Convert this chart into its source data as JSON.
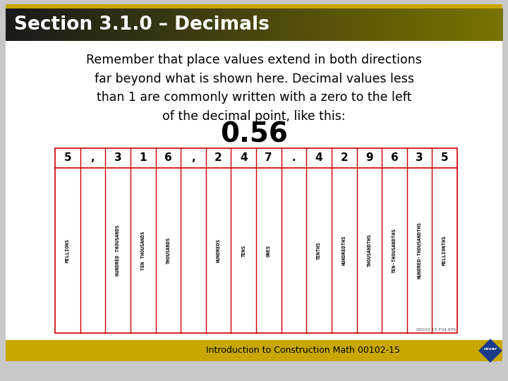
{
  "title": "Section 3.1.0 – Decimals",
  "title_bg_dark": "#1a1a1a",
  "title_bg_gold": "#c8a800",
  "title_text_color": "#ffffff",
  "bg_color": "#ffffff",
  "slide_bg": "#c8c8c8",
  "footer_bg": "#c8a800",
  "footer_text": "Introduction to Construction Math 00102-15",
  "body_text": "Remember that place values extend in both directions\nfar beyond what is shown here. Decimal values less\nthan 1 are commonly written with a zero to the left\nof the decimal point, like this:",
  "example_number": "0.56",
  "digits": [
    "5",
    ",",
    "3",
    "1",
    "6",
    ",",
    "2",
    "4",
    "7",
    ".",
    "4",
    "2",
    "9",
    "6",
    "3",
    "5"
  ],
  "labels": [
    "MILLIONS",
    "HUNDRED THOUSANDS",
    "TEN THOUSANDS",
    "THOUSANDS",
    "HUNDREDS",
    "TENS",
    "ONES",
    "TENTHS",
    "HUNDREDTHS",
    "THOUSANDTHS",
    "TEN-THOUSANDTHS",
    "HUNDRED-THOUSANDTHS",
    "MILLIONTHS"
  ],
  "separator_indices": [
    1,
    5,
    9
  ],
  "line_color": "#cc0000",
  "watermark": "00102-15 F04.EPS"
}
